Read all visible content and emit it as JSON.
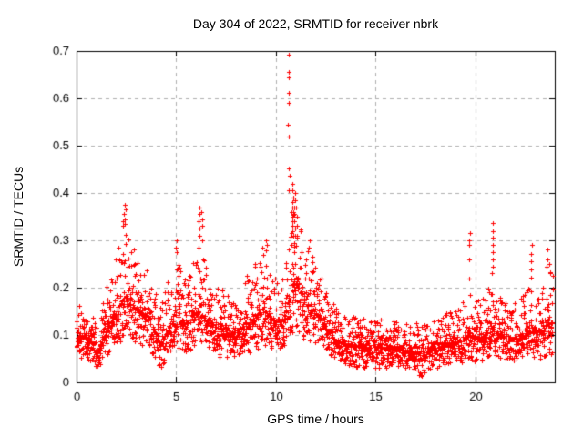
{
  "chart_data": {
    "type": "scatter",
    "title": "Day 304 of 2022, SRMTID for receiver nbrk",
    "xlabel": "GPS time / hours",
    "ylabel": "SRMTID / TECUs",
    "series_name": "SRMTID",
    "xlim": [
      0,
      24
    ],
    "ylim": [
      0,
      0.7
    ],
    "xticks": [
      "0",
      "5",
      "10",
      "15",
      "20"
    ],
    "yticks": [
      "0",
      "0.1",
      "0.2",
      "0.3",
      "0.4",
      "0.5",
      "0.6",
      "0.7"
    ],
    "grid": true,
    "legend": "none",
    "marker": "plus",
    "marker_size_px": 5,
    "colors": {
      "points": "#ff0000",
      "grid": "#b0b0b0",
      "axes": "#000000",
      "background": "#ffffff"
    },
    "sampling": {
      "points_per_hour": 120,
      "hours_span": 23.9,
      "seed": 20221031
    },
    "envelope_note": "control points [hour, min, typical, max] of the scatter band read from the pixels",
    "envelope": [
      [
        0.0,
        0.05,
        0.09,
        0.17
      ],
      [
        0.4,
        0.05,
        0.1,
        0.16
      ],
      [
        0.8,
        0.04,
        0.08,
        0.14
      ],
      [
        1.05,
        0.03,
        0.06,
        0.12
      ],
      [
        1.4,
        0.05,
        0.1,
        0.2
      ],
      [
        1.8,
        0.06,
        0.13,
        0.26
      ],
      [
        2.1,
        0.08,
        0.16,
        0.29
      ],
      [
        2.4,
        0.1,
        0.18,
        0.32
      ],
      [
        2.7,
        0.09,
        0.17,
        0.3
      ],
      [
        3.1,
        0.08,
        0.15,
        0.28
      ],
      [
        3.5,
        0.07,
        0.14,
        0.24
      ],
      [
        3.9,
        0.05,
        0.11,
        0.2
      ],
      [
        4.2,
        0.02,
        0.08,
        0.16
      ],
      [
        4.6,
        0.05,
        0.11,
        0.22
      ],
      [
        5.0,
        0.07,
        0.14,
        0.27
      ],
      [
        5.35,
        0.06,
        0.12,
        0.22
      ],
      [
        5.75,
        0.07,
        0.13,
        0.24
      ],
      [
        6.15,
        0.08,
        0.15,
        0.29
      ],
      [
        6.5,
        0.07,
        0.13,
        0.25
      ],
      [
        6.9,
        0.06,
        0.12,
        0.21
      ],
      [
        7.3,
        0.05,
        0.11,
        0.2
      ],
      [
        7.7,
        0.05,
        0.1,
        0.18
      ],
      [
        8.1,
        0.06,
        0.11,
        0.2
      ],
      [
        8.6,
        0.06,
        0.12,
        0.23
      ],
      [
        9.1,
        0.07,
        0.14,
        0.26
      ],
      [
        9.5,
        0.08,
        0.15,
        0.28
      ],
      [
        9.9,
        0.07,
        0.13,
        0.24
      ],
      [
        10.3,
        0.07,
        0.13,
        0.24
      ],
      [
        10.65,
        0.09,
        0.17,
        0.32
      ],
      [
        10.9,
        0.11,
        0.22,
        0.4
      ],
      [
        11.15,
        0.1,
        0.2,
        0.36
      ],
      [
        11.45,
        0.09,
        0.17,
        0.31
      ],
      [
        11.8,
        0.08,
        0.15,
        0.27
      ],
      [
        12.2,
        0.08,
        0.14,
        0.23
      ],
      [
        12.6,
        0.06,
        0.11,
        0.19
      ],
      [
        13.0,
        0.05,
        0.09,
        0.16
      ],
      [
        13.5,
        0.04,
        0.08,
        0.15
      ],
      [
        14.0,
        0.03,
        0.075,
        0.14
      ],
      [
        14.5,
        0.03,
        0.07,
        0.135
      ],
      [
        15.0,
        0.03,
        0.075,
        0.14
      ],
      [
        15.5,
        0.03,
        0.07,
        0.13
      ],
      [
        16.0,
        0.03,
        0.075,
        0.14
      ],
      [
        16.5,
        0.03,
        0.07,
        0.13
      ],
      [
        17.0,
        0.02,
        0.065,
        0.125
      ],
      [
        17.35,
        0.01,
        0.06,
        0.12
      ],
      [
        17.75,
        0.03,
        0.07,
        0.13
      ],
      [
        18.2,
        0.03,
        0.075,
        0.14
      ],
      [
        18.7,
        0.04,
        0.08,
        0.15
      ],
      [
        19.2,
        0.04,
        0.085,
        0.16
      ],
      [
        19.7,
        0.05,
        0.1,
        0.19
      ],
      [
        20.1,
        0.04,
        0.09,
        0.17
      ],
      [
        20.5,
        0.05,
        0.1,
        0.19
      ],
      [
        20.9,
        0.06,
        0.11,
        0.22
      ],
      [
        21.3,
        0.05,
        0.1,
        0.19
      ],
      [
        21.7,
        0.04,
        0.09,
        0.17
      ],
      [
        22.1,
        0.05,
        0.09,
        0.17
      ],
      [
        22.5,
        0.05,
        0.1,
        0.19
      ],
      [
        22.9,
        0.05,
        0.11,
        0.21
      ],
      [
        23.3,
        0.05,
        0.11,
        0.21
      ],
      [
        23.9,
        0.06,
        0.13,
        0.25
      ]
    ],
    "bursts_note": "distinct tall clusters / outlier chains [hour, list of TECU values]",
    "bursts": [
      {
        "t": 2.35,
        "values": [
          0.34,
          0.33
        ]
      },
      {
        "t": 2.42,
        "values": [
          0.375,
          0.365,
          0.355,
          0.345,
          0.335
        ]
      },
      {
        "t": 5.02,
        "values": [
          0.3,
          0.285,
          0.275
        ]
      },
      {
        "t": 6.15,
        "values": [
          0.37,
          0.355,
          0.34,
          0.325,
          0.31
        ]
      },
      {
        "t": 6.28,
        "values": [
          0.36,
          0.345,
          0.33,
          0.3
        ]
      },
      {
        "t": 9.35,
        "values": [
          0.285,
          0.27
        ]
      },
      {
        "t": 9.55,
        "values": [
          0.3,
          0.29
        ]
      },
      {
        "t": 10.65,
        "values": [
          0.692,
          0.655,
          0.645,
          0.612,
          0.59,
          0.545,
          0.52
        ]
      },
      {
        "t": 10.68,
        "values": [
          0.452,
          0.437,
          0.405
        ]
      },
      {
        "t": 10.85,
        "values": [
          0.42,
          0.405,
          0.39,
          0.38,
          0.37,
          0.36,
          0.35,
          0.34,
          0.33,
          0.32,
          0.31
        ]
      },
      {
        "t": 10.95,
        "values": [
          0.4,
          0.385,
          0.37,
          0.355,
          0.34,
          0.325,
          0.31,
          0.295
        ]
      },
      {
        "t": 11.05,
        "values": [
          0.37,
          0.35,
          0.33,
          0.31
        ]
      },
      {
        "t": 11.7,
        "values": [
          0.3,
          0.285
        ]
      },
      {
        "t": 19.72,
        "values": [
          0.315,
          0.3,
          0.29,
          0.26,
          0.22,
          0.185
        ]
      },
      {
        "t": 20.88,
        "values": [
          0.337,
          0.32,
          0.305,
          0.29,
          0.275,
          0.26,
          0.245,
          0.23
        ]
      },
      {
        "t": 22.82,
        "values": [
          0.29,
          0.272,
          0.255,
          0.238,
          0.222
        ]
      },
      {
        "t": 23.62,
        "values": [
          0.28,
          0.26,
          0.245
        ]
      },
      {
        "t": 23.75,
        "values": [
          0.25,
          0.23
        ]
      }
    ]
  }
}
